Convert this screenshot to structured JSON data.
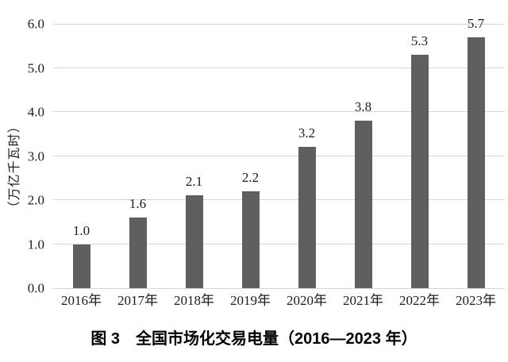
{
  "chart_data": {
    "type": "bar",
    "title": "图 3　全国市场化交易电量（2016—2023 年）",
    "ylabel": "（万亿千瓦时）",
    "xlabel": "",
    "categories": [
      "2016年",
      "2017年",
      "2018年",
      "2019年",
      "2020年",
      "2021年",
      "2022年",
      "2023年"
    ],
    "values": [
      1.0,
      1.6,
      2.1,
      2.2,
      3.2,
      3.8,
      5.3,
      5.7
    ],
    "value_labels": [
      "1.0",
      "1.6",
      "2.1",
      "2.2",
      "3.2",
      "3.8",
      "5.3",
      "5.7"
    ],
    "ylim": [
      0,
      6
    ],
    "ytick_labels": [
      "0.0",
      "1.0",
      "2.0",
      "3.0",
      "4.0",
      "5.0",
      "6.0"
    ],
    "grid": true,
    "legend": false,
    "colors": {
      "bar": "#5f5f5f",
      "gridline": "#d5d5d5",
      "text": "#1c1c1c",
      "background": "#ffffff"
    }
  }
}
